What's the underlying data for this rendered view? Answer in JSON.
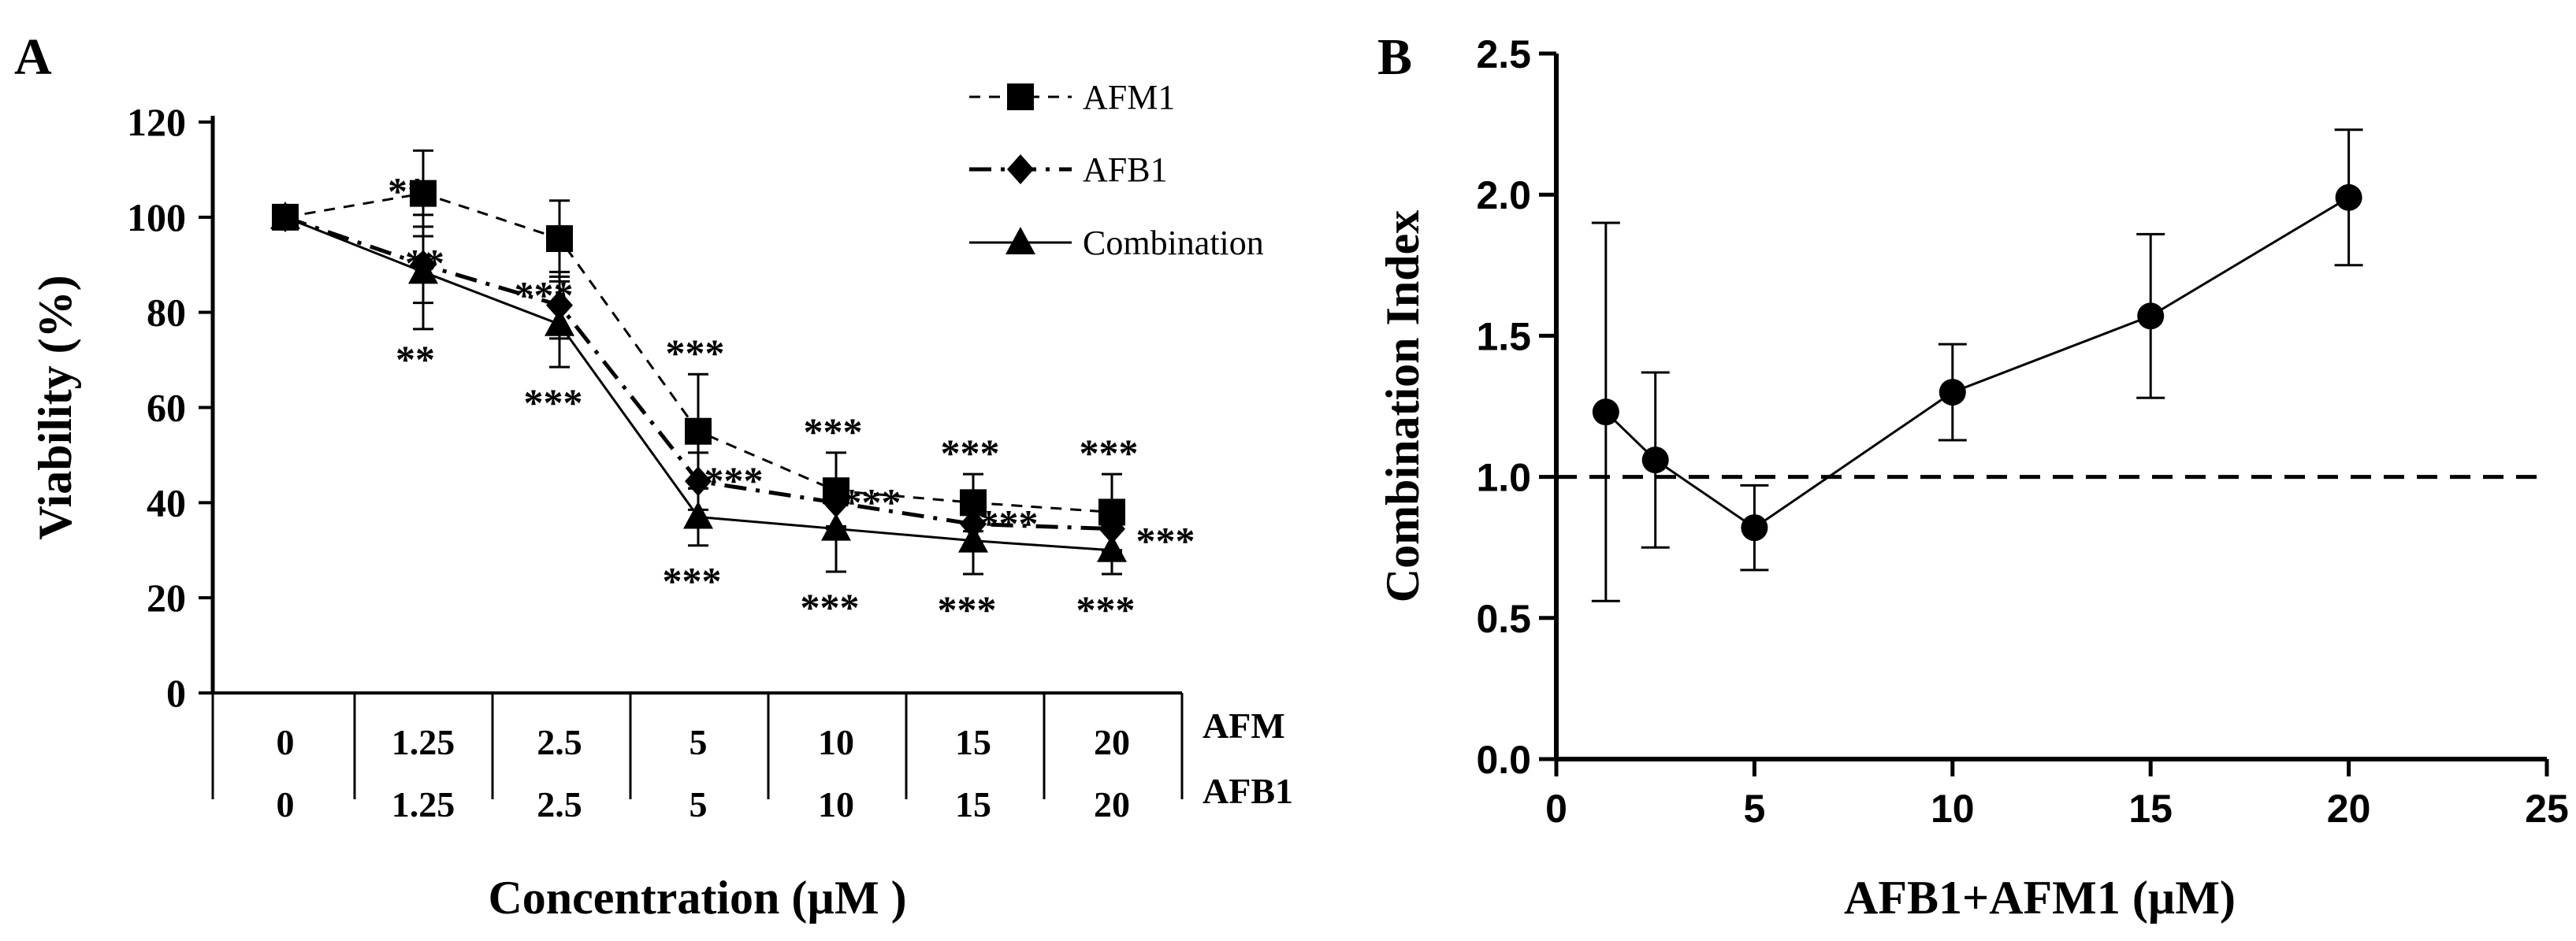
{
  "panel_a_label": "A",
  "panel_b_label": "B",
  "chart_data": [
    {
      "type": "line",
      "panel": "A",
      "ylabel": "Viability (%)",
      "xlabel": "Concentration (µM )",
      "ylim": [
        0,
        120
      ],
      "yticks": [
        0,
        20,
        40,
        60,
        80,
        100,
        120
      ],
      "row_labels": [
        "AFM",
        "AFB1"
      ],
      "categories_afm": [
        "0",
        "1.25",
        "2.5",
        "5",
        "10",
        "15",
        "20"
      ],
      "categories_afb1": [
        "0",
        "1.25",
        "2.5",
        "5",
        "10",
        "15",
        "20"
      ],
      "series": [
        {
          "name": "AFM1",
          "legend_label": "AFM1",
          "marker": "square",
          "dash": "dashed",
          "values": [
            100,
            105,
            95.5,
            55,
            42.5,
            40,
            38
          ],
          "errors": [
            0,
            9,
            8,
            12,
            8,
            6,
            8
          ]
        },
        {
          "name": "AFB1",
          "legend_label": "AFB1",
          "marker": "diamond",
          "dash": "dashdot",
          "values": [
            100,
            90,
            81.5,
            44.5,
            40,
            35.5,
            34.5
          ],
          "errors": [
            0,
            8,
            7,
            6,
            5,
            5,
            5
          ]
        },
        {
          "name": "Combination",
          "legend_label": "Combination",
          "marker": "triangle",
          "dash": "solid",
          "values": [
            100,
            88.5,
            77.5,
            37,
            34.5,
            32,
            30
          ],
          "errors": [
            0,
            12,
            9,
            6,
            9,
            7,
            5
          ]
        }
      ],
      "significance": [
        {
          "category": 1,
          "series": "AFM1",
          "text": "**"
        },
        {
          "category": 1,
          "series": "AFB1",
          "text": "**"
        },
        {
          "category": 1,
          "series": "Combination",
          "text": "**"
        },
        {
          "category": 2,
          "series": "AFB1",
          "text": "***"
        },
        {
          "category": 2,
          "series": "Combination",
          "text": "***"
        },
        {
          "category": 3,
          "series": "AFM1",
          "text": "***"
        },
        {
          "category": 3,
          "series": "AFB1",
          "text": "***"
        },
        {
          "category": 3,
          "series": "Combination",
          "text": "***"
        },
        {
          "category": 4,
          "series": "AFM1",
          "text": "***"
        },
        {
          "category": 4,
          "series": "AFB1",
          "text": "***"
        },
        {
          "category": 4,
          "series": "Combination",
          "text": "***"
        },
        {
          "category": 5,
          "series": "AFM1",
          "text": "***"
        },
        {
          "category": 5,
          "series": "AFB1",
          "text": "***"
        },
        {
          "category": 5,
          "series": "Combination",
          "text": "***"
        },
        {
          "category": 6,
          "series": "AFM1",
          "text": "***"
        },
        {
          "category": 6,
          "series": "AFB1",
          "text": "***"
        },
        {
          "category": 6,
          "series": "Combination",
          "text": "***"
        }
      ]
    },
    {
      "type": "line",
      "panel": "B",
      "ylabel": "Combination Index",
      "xlabel": "AFB1+AFM1 (µM)",
      "xlim": [
        0,
        25
      ],
      "ylim": [
        0,
        2.5
      ],
      "xticks": [
        "0",
        "5",
        "10",
        "15",
        "20",
        "25"
      ],
      "yticks": [
        "0.0",
        "0.5",
        "1.0",
        "1.5",
        "2.0",
        "2.5"
      ],
      "reference_line": 1.0,
      "series": [
        {
          "name": "Combination Index",
          "x": [
            1.25,
            2.5,
            5,
            10,
            15,
            20
          ],
          "y": [
            1.23,
            1.06,
            0.82,
            1.3,
            1.57,
            1.99
          ],
          "err_low": [
            0.56,
            0.75,
            0.67,
            1.13,
            1.28,
            1.75
          ],
          "err_high": [
            1.9,
            1.37,
            0.97,
            1.47,
            1.86,
            2.23
          ]
        }
      ]
    }
  ]
}
